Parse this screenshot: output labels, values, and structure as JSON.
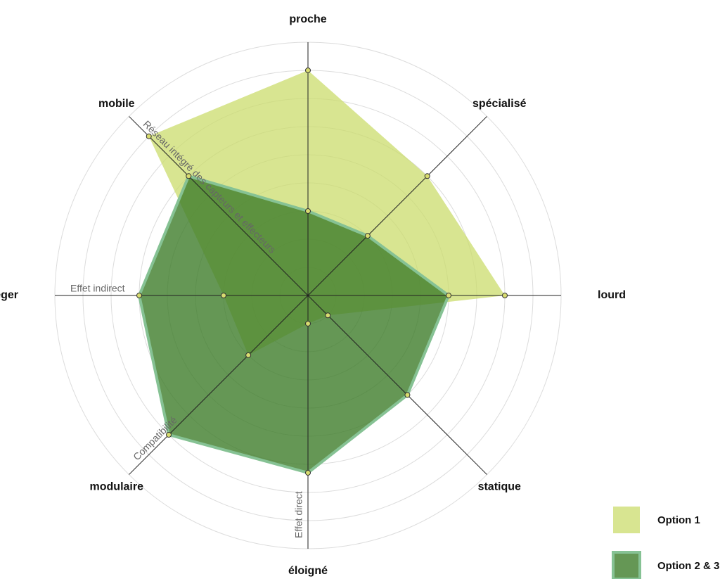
{
  "chart_data": {
    "type": "radar",
    "categories": [
      "proche",
      "spécialisé",
      "lourd",
      "statique",
      "éloigné",
      "modulaire",
      "léger",
      "mobile"
    ],
    "rlim": [
      0,
      9
    ],
    "rticks": [
      1,
      2,
      3,
      4,
      5,
      6,
      7,
      8,
      9
    ],
    "series": [
      {
        "name": "Option 1",
        "color": "#cbdc6c",
        "values": [
          8,
          6,
          7,
          1,
          1,
          3,
          3,
          8
        ]
      },
      {
        "name": "Option 2 & 3",
        "color": "#3f7d2b",
        "edge": "#86c294",
        "values": [
          3,
          3,
          5,
          5,
          6.3,
          7,
          6,
          6
        ]
      }
    ],
    "annotations": [
      {
        "text": "Réseau intégré des capteurs et effecteurs",
        "axis": 7
      },
      {
        "text": "Effet indirect",
        "axis": 6
      },
      {
        "text": "Compatibilité",
        "axis": 5
      },
      {
        "text": "Effet direct",
        "axis": 4
      }
    ]
  }
}
